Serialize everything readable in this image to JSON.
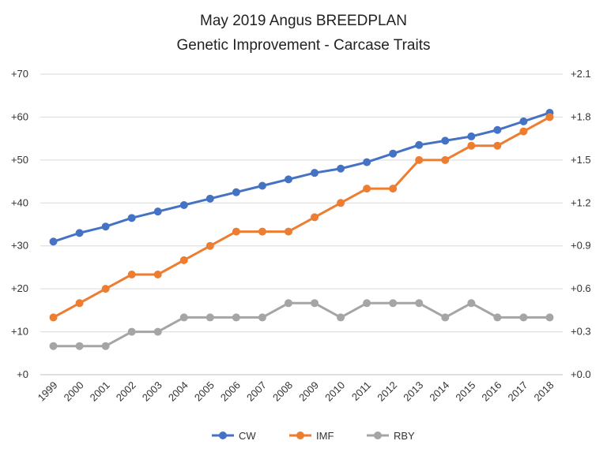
{
  "chart_data": {
    "type": "line",
    "title": [
      "May 2019 Angus BREEDPLAN",
      "Genetic Improvement - Carcase Traits"
    ],
    "categories": [
      "1999",
      "2000",
      "2001",
      "2002",
      "2003",
      "2004",
      "2005",
      "2006",
      "2007",
      "2008",
      "2009",
      "2010",
      "2011",
      "2012",
      "2013",
      "2014",
      "2015",
      "2016",
      "2017",
      "2018"
    ],
    "y_left": {
      "ylim": [
        0,
        70
      ],
      "ticks": [
        0,
        10,
        20,
        30,
        40,
        50,
        60,
        70
      ],
      "tick_labels": [
        "+0",
        "+10",
        "+20",
        "+30",
        "+40",
        "+50",
        "+60",
        "+70"
      ]
    },
    "y_right": {
      "ylim": [
        0,
        2.1
      ],
      "ticks": [
        0,
        0.3,
        0.6,
        0.9,
        1.2,
        1.5,
        1.8,
        2.1
      ],
      "tick_labels": [
        "+0.0",
        "+0.3",
        "+0.6",
        "+0.9",
        "+1.2",
        "+1.5",
        "+1.8",
        "+2.1"
      ]
    },
    "grid": true,
    "legend_position": "bottom",
    "series": [
      {
        "name": "CW",
        "axis": "left",
        "color": "#4472C4",
        "values": [
          31,
          33,
          34.5,
          36.5,
          38,
          39.5,
          41,
          42.5,
          44,
          45.5,
          47,
          48,
          49.5,
          51.5,
          53.5,
          54.5,
          55.5,
          57,
          59,
          61
        ]
      },
      {
        "name": "IMF",
        "axis": "right",
        "color": "#ED7D31",
        "values": [
          0.4,
          0.5,
          0.6,
          0.7,
          0.7,
          0.8,
          0.9,
          1.0,
          1.0,
          1.0,
          1.1,
          1.2,
          1.3,
          1.3,
          1.5,
          1.5,
          1.6,
          1.6,
          1.7,
          1.8
        ]
      },
      {
        "name": "RBY",
        "axis": "right",
        "color": "#A5A5A5",
        "values": [
          0.2,
          0.2,
          0.2,
          0.3,
          0.3,
          0.4,
          0.4,
          0.4,
          0.4,
          0.5,
          0.5,
          0.4,
          0.5,
          0.5,
          0.5,
          0.4,
          0.5,
          0.4,
          0.4,
          0.4
        ]
      }
    ]
  }
}
